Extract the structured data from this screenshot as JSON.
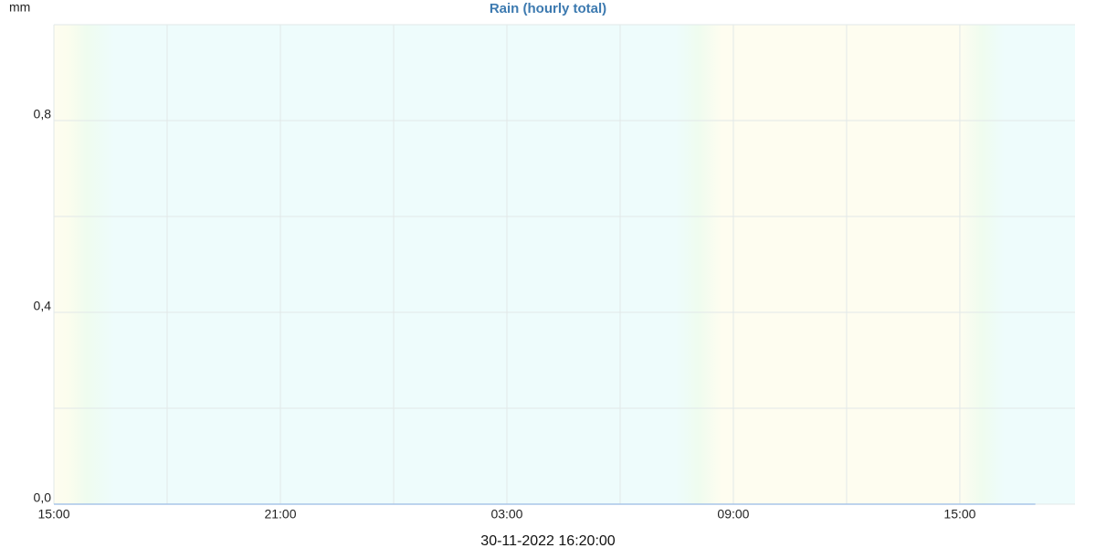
{
  "chart_data": {
    "type": "line",
    "title": "Rain (hourly total)",
    "y_label": "mm",
    "footer": "30-11-2022 16:20:00",
    "x": [
      0,
      1,
      2,
      3,
      4,
      5,
      6,
      7,
      8,
      9,
      10,
      11,
      12,
      13,
      14,
      15,
      16,
      17,
      18,
      19,
      20,
      21,
      22,
      23,
      24,
      25,
      26
    ],
    "series": [
      {
        "name": "Rain",
        "color": "#a9c5e8",
        "values": [
          0,
          0,
          0,
          0,
          0,
          0,
          0,
          0,
          0,
          0,
          0,
          0,
          0,
          0,
          0,
          0,
          0,
          0,
          0,
          0,
          0,
          0,
          0,
          0,
          0,
          0,
          0
        ]
      }
    ],
    "xlim": [
      0,
      27.05
    ],
    "ylim": [
      0,
      1.0
    ],
    "xticks": [
      {
        "value": 0,
        "label": "15:00"
      },
      {
        "value": 3,
        "label": null
      },
      {
        "value": 6,
        "label": "21:00"
      },
      {
        "value": 9,
        "label": null
      },
      {
        "value": 12,
        "label": "03:00"
      },
      {
        "value": 15,
        "label": null
      },
      {
        "value": 18,
        "label": "09:00"
      },
      {
        "value": 21,
        "label": null
      },
      {
        "value": 24,
        "label": "15:00"
      }
    ],
    "yticks": [
      {
        "value": 0,
        "label": "0,0"
      },
      {
        "value": 0.2,
        "label": null
      },
      {
        "value": 0.4,
        "label": "0,4"
      },
      {
        "value": 0.6,
        "label": null
      },
      {
        "value": 0.8,
        "label": "0,8"
      },
      {
        "value": 1.0,
        "label": null
      }
    ],
    "grid": true
  }
}
